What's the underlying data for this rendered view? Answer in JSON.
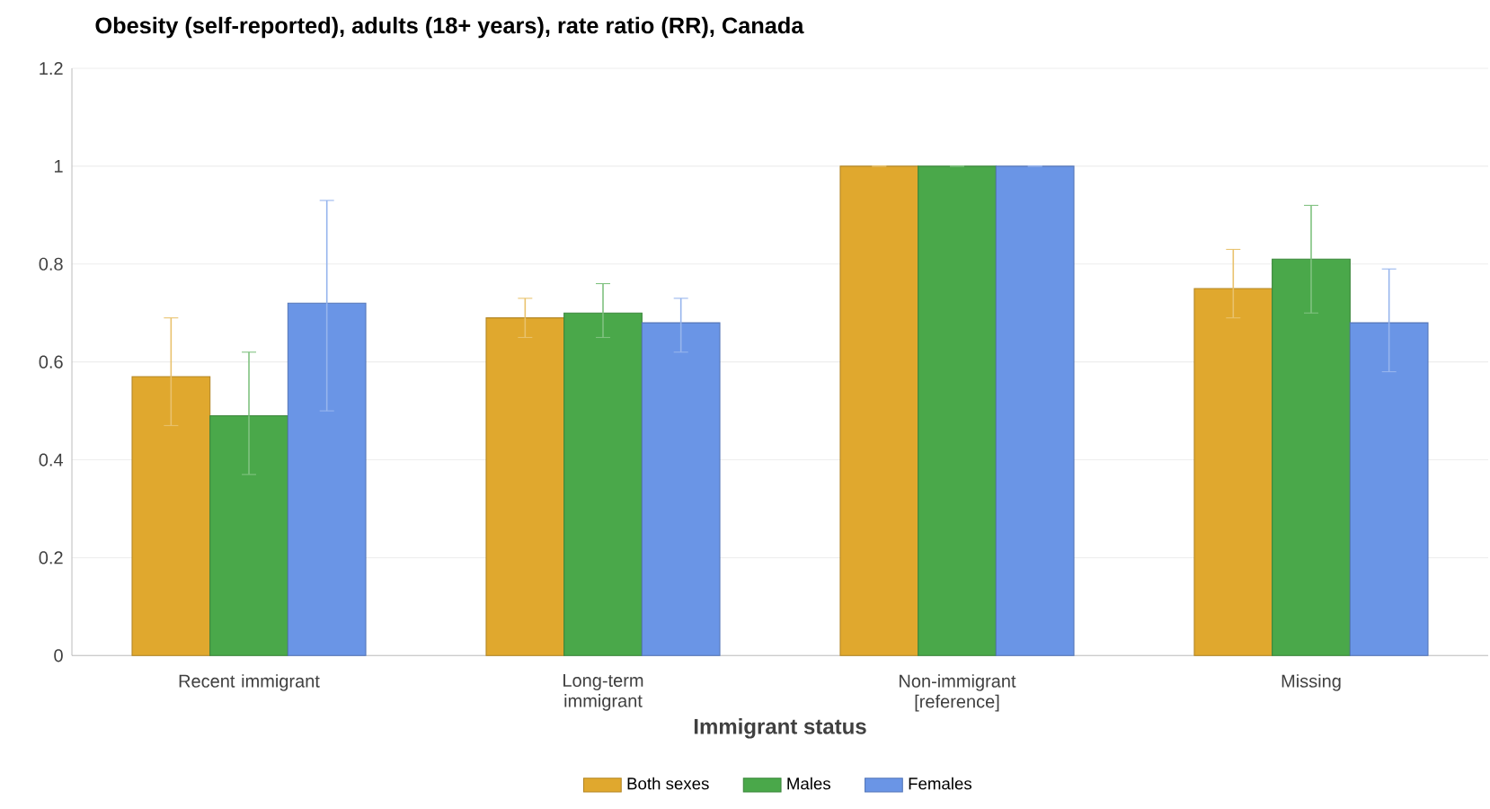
{
  "chart_data": {
    "type": "bar",
    "title": "Obesity (self-reported), adults (18+ years), rate ratio (RR), Canada",
    "xlabel": "Immigrant status",
    "categories": [
      "Recent immigrant",
      "Long-term immigrant",
      "Non-immigrant [reference]",
      "Missing"
    ],
    "series": [
      {
        "name": "Both sexes",
        "color": "#e0a82e",
        "values": [
          0.57,
          0.69,
          1.0,
          0.75
        ],
        "errors": [
          [
            0.47,
            0.69
          ],
          [
            0.65,
            0.73
          ],
          null,
          [
            0.69,
            0.83
          ]
        ]
      },
      {
        "name": "Males",
        "color": "#4aa84a",
        "values": [
          0.49,
          0.7,
          1.0,
          0.81
        ],
        "errors": [
          [
            0.37,
            0.62
          ],
          [
            0.65,
            0.76
          ],
          null,
          [
            0.7,
            0.92
          ]
        ]
      },
      {
        "name": "Females",
        "color": "#6a95e6",
        "values": [
          0.72,
          0.68,
          1.0,
          0.68
        ],
        "errors": [
          [
            0.5,
            0.93
          ],
          [
            0.62,
            0.73
          ],
          null,
          [
            0.58,
            0.79
          ]
        ]
      }
    ],
    "ylim": [
      0,
      1.2
    ],
    "yticks": [
      0,
      0.2,
      0.4,
      0.6,
      0.8,
      1,
      1.2
    ],
    "grid": "y",
    "legend": "bottom"
  }
}
